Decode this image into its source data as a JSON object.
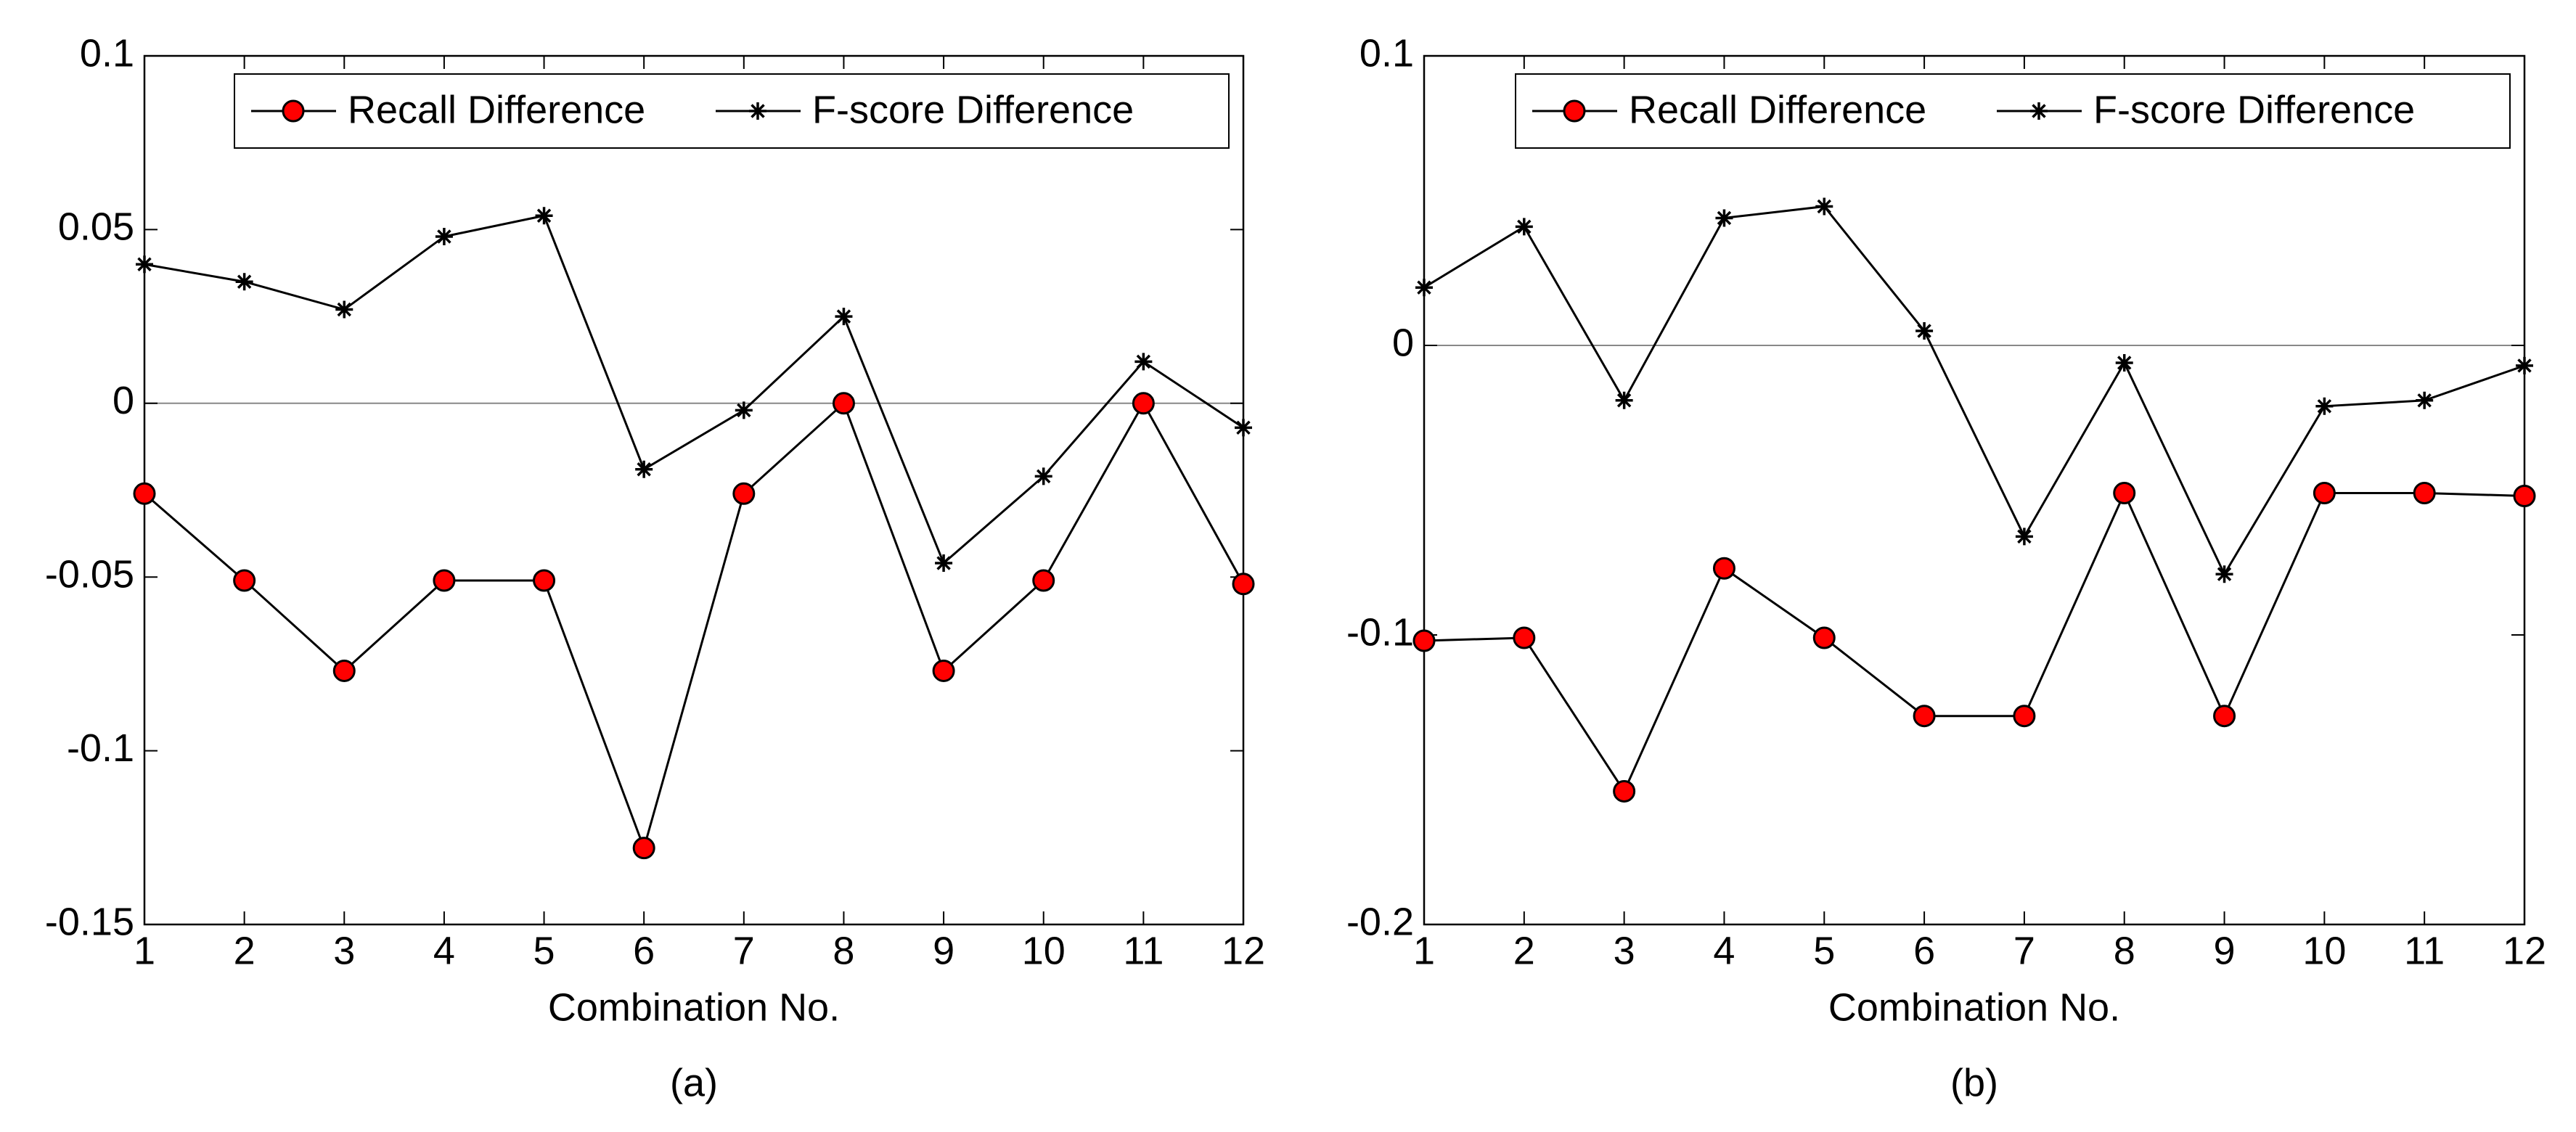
{
  "chart_data": [
    {
      "type": "line",
      "caption": "(a)",
      "xlabel": "Combination No.",
      "x": [
        1,
        2,
        3,
        4,
        5,
        6,
        7,
        8,
        9,
        10,
        11,
        12
      ],
      "xlim": [
        1,
        12
      ],
      "xticks": [
        1,
        2,
        3,
        4,
        5,
        6,
        7,
        8,
        9,
        10,
        11,
        12
      ],
      "ylim": [
        -0.15,
        0.1
      ],
      "yticks": [
        -0.15,
        -0.1,
        -0.05,
        0,
        0.05,
        0.1
      ],
      "zero_line": true,
      "legend": "upper right",
      "series": [
        {
          "name": "Recall Difference",
          "color": "#000000",
          "marker": "circle",
          "marker_color": "#ff0000",
          "values": [
            -0.026,
            -0.051,
            -0.077,
            -0.051,
            -0.051,
            -0.128,
            -0.026,
            0,
            -0.077,
            -0.051,
            0,
            -0.052
          ]
        },
        {
          "name": "F-score Difference",
          "color": "#000000",
          "marker": "star",
          "marker_color": "#000000",
          "values": [
            0.04,
            0.035,
            0.027,
            0.048,
            0.054,
            -0.019,
            -0.002,
            0.025,
            -0.046,
            -0.021,
            0.012,
            -0.007
          ]
        }
      ]
    },
    {
      "type": "line",
      "caption": "(b)",
      "xlabel": "Combination No.",
      "x": [
        1,
        2,
        3,
        4,
        5,
        6,
        7,
        8,
        9,
        10,
        11,
        12
      ],
      "xlim": [
        1,
        12
      ],
      "xticks": [
        1,
        2,
        3,
        4,
        5,
        6,
        7,
        8,
        9,
        10,
        11,
        12
      ],
      "ylim": [
        -0.2,
        0.1
      ],
      "yticks": [
        -0.2,
        -0.1,
        0,
        0.1
      ],
      "zero_line": true,
      "legend": "upper right",
      "series": [
        {
          "name": "Recall Difference",
          "color": "#000000",
          "marker": "circle",
          "marker_color": "#ff0000",
          "values": [
            -0.102,
            -0.101,
            -0.154,
            -0.077,
            -0.101,
            -0.128,
            -0.128,
            -0.051,
            -0.128,
            -0.051,
            -0.051,
            -0.052
          ]
        },
        {
          "name": "F-score Difference",
          "color": "#000000",
          "marker": "star",
          "marker_color": "#000000",
          "values": [
            0.02,
            0.041,
            -0.019,
            0.044,
            0.048,
            0.005,
            -0.066,
            -0.006,
            -0.079,
            -0.021,
            -0.019,
            -0.007
          ]
        }
      ]
    }
  ]
}
